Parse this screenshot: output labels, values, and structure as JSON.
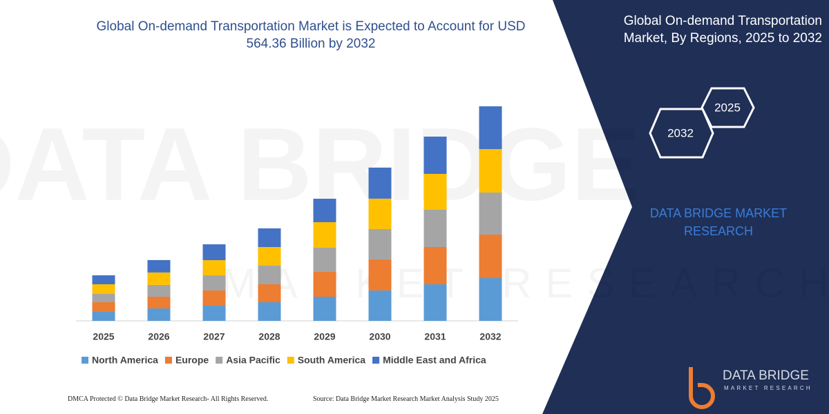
{
  "chart_data": {
    "type": "stacked_bar",
    "title": "Global On-demand Transportation Market is Expected to Account for USD 564.36 Billion by 2032",
    "categories": [
      "2025",
      "2026",
      "2027",
      "2028",
      "2029",
      "2030",
      "2031",
      "2032"
    ],
    "series": [
      {
        "name": "North America",
        "color": "#5b9bd5",
        "values": [
          23.6,
          32.7,
          39.9,
          49.0,
          63.5,
          79.9,
          96.2,
          112.5
        ]
      },
      {
        "name": "Europe",
        "color": "#ed7d31",
        "values": [
          25.4,
          30.9,
          39.9,
          47.2,
          65.3,
          81.7,
          98.0,
          114.3
        ]
      },
      {
        "name": "Asia Pacific",
        "color": "#a5a5a5",
        "values": [
          21.8,
          30.9,
          39.9,
          49.0,
          63.5,
          79.9,
          98.0,
          110.7
        ]
      },
      {
        "name": "South America",
        "color": "#ffc000",
        "values": [
          25.4,
          32.7,
          39.9,
          49.0,
          67.2,
          79.9,
          94.4,
          114.3
        ]
      },
      {
        "name": "Middle East and Africa",
        "color": "#4472c4",
        "values": [
          23.6,
          32.7,
          41.7,
          49.0,
          61.7,
          81.7,
          98.0,
          112.5
        ]
      }
    ],
    "ylim": [
      0,
      600
    ],
    "legend": "bottom"
  },
  "side_panel": {
    "title": "Global On-demand Transportation Market, By Regions, 2025 to 2032",
    "hexagons": [
      "2025",
      "2032"
    ],
    "brand": "DATA BRIDGE MARKET RESEARCH"
  },
  "logo": {
    "name": "DATA BRIDGE",
    "tagline": "MARKET RESEARCH"
  },
  "footer": {
    "left": "DMCA Protected © Data Bridge Market Research- All Rights Reserved.",
    "right": "Source: Data Bridge Market Research Market Analysis Study 2025"
  }
}
